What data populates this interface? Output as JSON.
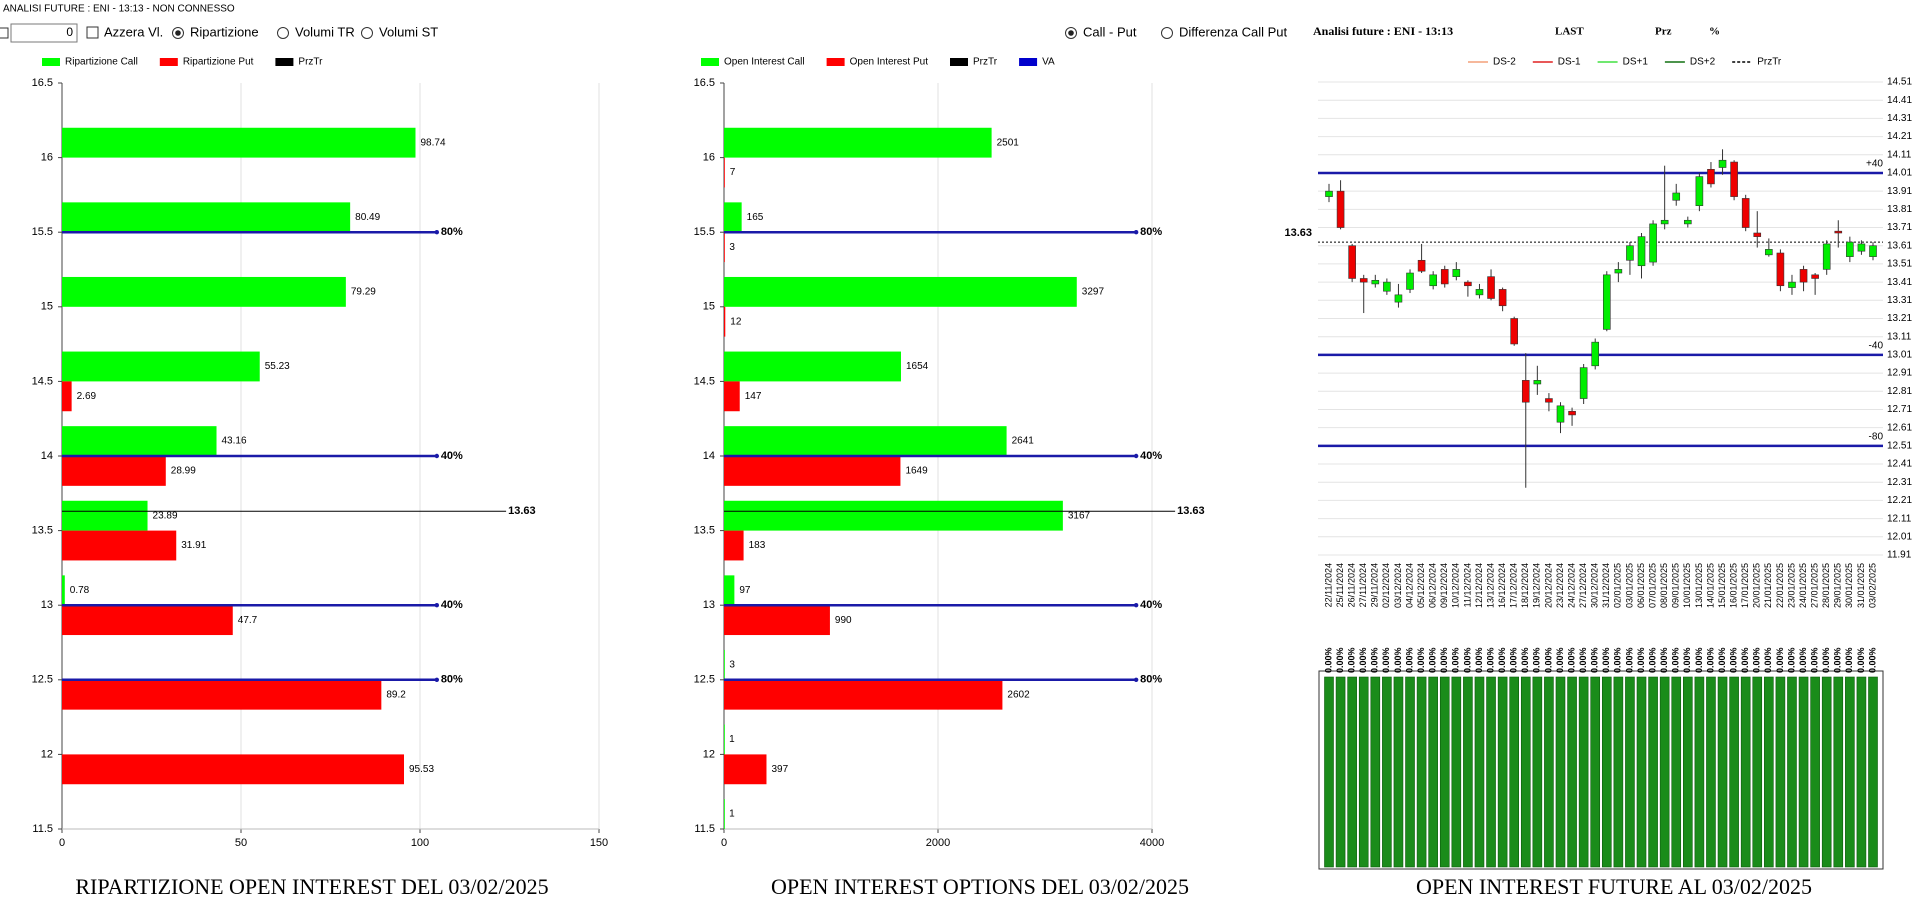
{
  "window": {
    "title": "ANALISI FUTURE : ENI - 13:13 - NON CONNESSO"
  },
  "controls": {
    "input": 0,
    "checkbox": "Azzera Vl.",
    "radios": [
      {
        "label": "Ripartizione",
        "checked": true
      },
      {
        "label": "Volumi TR",
        "checked": false
      },
      {
        "label": "Volumi ST",
        "checked": false
      }
    ],
    "view_radios": [
      {
        "label": "Call - Put",
        "checked": true
      },
      {
        "label": "Differenza Call Put",
        "checked": false
      }
    ]
  },
  "chart_data": [
    {
      "type": "hbar",
      "title": "RIPARTIZIONE OPEN INTEREST DEL 03/02/2025",
      "y": [
        16,
        15.5,
        15,
        14.5,
        14,
        13.5,
        13,
        12.5,
        12
      ],
      "ylim": [
        11.5,
        16.5
      ],
      "yticks": [
        16.5,
        16,
        15.5,
        15,
        14.5,
        14,
        13.5,
        13,
        12.5,
        12,
        11.5
      ],
      "xlim": [
        0,
        150
      ],
      "xticks": [
        0,
        50,
        100,
        150
      ],
      "grid": true,
      "series": [
        {
          "name": "Ripartizione Call",
          "color": "#00ff00",
          "values": [
            98.74,
            80.49,
            79.29,
            55.23,
            43.16,
            23.89,
            0.78,
            null,
            null
          ]
        },
        {
          "name": "Ripartizione Put",
          "color": "#ff0000",
          "values": [
            null,
            null,
            null,
            2.69,
            28.99,
            31.91,
            47.7,
            89.2,
            95.53
          ]
        }
      ],
      "legend_extra": [
        {
          "name": "PrzTr",
          "color": "#000000"
        }
      ],
      "ref_lines": [
        {
          "value": 15.5,
          "label": "80%"
        },
        {
          "value": 14,
          "label": "40%"
        },
        {
          "value": 13,
          "label": "40%"
        },
        {
          "value": 12.5,
          "label": "80%"
        }
      ],
      "price": 13.63
    },
    {
      "type": "hbar",
      "title": "OPEN INTEREST OPTIONS DEL 03/02/2025",
      "y": [
        16,
        15.5,
        15,
        14.5,
        14,
        13.5,
        13,
        12.5,
        12,
        11.5
      ],
      "ylim": [
        11.5,
        16.5
      ],
      "yticks": [
        16.5,
        16,
        15.5,
        15,
        14.5,
        14,
        13.5,
        13,
        12.5,
        12,
        11.5
      ],
      "xlim": [
        0,
        4000
      ],
      "xticks": [
        0,
        2000,
        4000
      ],
      "grid": true,
      "series": [
        {
          "name": "Open Interest Call",
          "color": "#00ff00",
          "values": [
            2501,
            165,
            3297,
            1654,
            2641,
            3167,
            97,
            3,
            1,
            1
          ]
        },
        {
          "name": "Open Interest Put",
          "color": "#ff0000",
          "values": [
            7,
            3,
            12,
            147,
            1649,
            183,
            990,
            2602,
            397,
            null
          ]
        }
      ],
      "legend_extra": [
        {
          "name": "PrzTr",
          "color": "#000000"
        },
        {
          "name": "VA",
          "color": "#0000cc"
        }
      ],
      "ref_lines": [
        {
          "value": 15.5,
          "label": "80%"
        },
        {
          "value": 14,
          "label": "40%"
        },
        {
          "value": 13,
          "label": "40%"
        },
        {
          "value": 12.5,
          "label": "80%"
        }
      ],
      "price": 13.63
    },
    {
      "type": "candlestick",
      "header": "Analisi future : ENI - 13:13",
      "columns": [
        "LAST",
        "Prz",
        "%"
      ],
      "legend": [
        {
          "name": "DS-2",
          "color": "#f4a07a"
        },
        {
          "name": "DS-1",
          "color": "#e02020"
        },
        {
          "name": "DS+1",
          "color": "#40e040"
        },
        {
          "name": "DS+2",
          "color": "#107010"
        },
        {
          "name": "PrzTr",
          "color": "#000000",
          "dash": true
        }
      ],
      "x": [
        "22/11/2024",
        "25/11/2024",
        "26/11/2024",
        "27/11/2024",
        "29/11/2024",
        "02/12/2024",
        "03/12/2024",
        "04/12/2024",
        "05/12/2024",
        "06/12/2024",
        "09/12/2024",
        "10/12/2024",
        "11/12/2024",
        "12/12/2024",
        "13/12/2024",
        "16/12/2024",
        "17/12/2024",
        "18/12/2024",
        "19/12/2024",
        "20/12/2024",
        "23/12/2024",
        "24/12/2024",
        "27/12/2024",
        "30/12/2024",
        "31/12/2024",
        "02/01/2025",
        "03/01/2025",
        "06/01/2025",
        "07/01/2025",
        "08/01/2025",
        "09/01/2025",
        "10/01/2025",
        "13/01/2025",
        "14/01/2025",
        "15/01/2025",
        "16/01/2025",
        "17/01/2025",
        "20/01/2025",
        "21/01/2025",
        "22/01/2025",
        "23/01/2025",
        "24/01/2025",
        "27/01/2025",
        "28/01/2025",
        "29/01/2025",
        "30/01/2025",
        "31/01/2025",
        "03/02/2025"
      ],
      "open": [
        13.88,
        13.91,
        13.61,
        13.43,
        13.4,
        13.36,
        13.3,
        13.37,
        13.53,
        13.39,
        13.48,
        13.44,
        13.41,
        13.34,
        13.44,
        13.37,
        13.21,
        12.87,
        12.85,
        12.77,
        12.64,
        12.7,
        12.77,
        12.95,
        13.15,
        13.46,
        13.53,
        13.5,
        13.52,
        13.73,
        13.86,
        13.73,
        13.83,
        14.03,
        14.04,
        14.07,
        13.87,
        13.68,
        13.56,
        13.57,
        13.38,
        13.48,
        13.45,
        13.48,
        13.69,
        13.55,
        13.58,
        13.55
      ],
      "high": [
        13.95,
        13.97,
        13.62,
        13.45,
        13.45,
        13.43,
        13.4,
        13.48,
        13.62,
        13.47,
        13.5,
        13.52,
        13.42,
        13.4,
        13.48,
        13.38,
        13.22,
        13.02,
        12.95,
        12.8,
        12.75,
        12.72,
        12.96,
        13.1,
        13.47,
        13.52,
        13.63,
        13.68,
        13.75,
        14.05,
        13.95,
        13.77,
        14.01,
        14.07,
        14.14,
        14.08,
        13.89,
        13.8,
        13.65,
        13.59,
        13.45,
        13.5,
        13.46,
        13.64,
        13.75,
        13.66,
        13.64,
        13.63
      ],
      "low": [
        13.85,
        13.7,
        13.41,
        13.24,
        13.38,
        13.34,
        13.27,
        13.35,
        13.46,
        13.37,
        13.38,
        13.42,
        13.33,
        13.32,
        13.31,
        13.25,
        13.06,
        12.28,
        12.79,
        12.7,
        12.58,
        12.62,
        12.74,
        12.93,
        13.14,
        13.41,
        13.45,
        13.43,
        13.5,
        13.7,
        13.83,
        13.71,
        13.8,
        13.93,
        14.0,
        13.86,
        13.69,
        13.6,
        13.55,
        13.36,
        13.34,
        13.36,
        13.34,
        13.45,
        13.6,
        13.52,
        13.56,
        13.53
      ],
      "close": [
        13.91,
        13.71,
        13.43,
        13.41,
        13.42,
        13.41,
        13.34,
        13.46,
        13.47,
        13.45,
        13.4,
        13.48,
        13.39,
        13.37,
        13.32,
        13.28,
        13.07,
        12.75,
        12.87,
        12.75,
        12.73,
        12.68,
        12.94,
        13.08,
        13.45,
        13.48,
        13.61,
        13.66,
        13.73,
        13.75,
        13.9,
        13.75,
        13.99,
        13.95,
        14.08,
        13.88,
        13.71,
        13.66,
        13.59,
        13.39,
        13.41,
        13.41,
        13.43,
        13.62,
        13.68,
        13.63,
        13.62,
        13.61
      ],
      "ylim": [
        11.91,
        14.51
      ],
      "yticks": [
        14.51,
        14.41,
        14.31,
        14.21,
        14.11,
        14.01,
        13.91,
        13.81,
        13.71,
        13.61,
        13.51,
        13.41,
        13.31,
        13.21,
        13.11,
        13.01,
        12.91,
        12.81,
        12.71,
        12.61,
        12.51,
        12.41,
        12.31,
        12.21,
        12.11,
        12.01,
        11.91
      ],
      "grid": true,
      "ref_lines": [
        {
          "value": 14.01,
          "label": "+40"
        },
        {
          "value": 13.01,
          "label": "-40"
        },
        {
          "value": 12.51,
          "label": "-80"
        }
      ],
      "price": 13.63
    },
    {
      "type": "bar",
      "title": "OPEN INTEREST FUTURE AL 03/02/2025",
      "color": "#1a8c1a",
      "labels": [
        "0.00%",
        "0.00%",
        "0.00%",
        "0.00%",
        "0.00%",
        "0.00%",
        "0.00%",
        "0.00%",
        "0.00%",
        "0.00%",
        "0.00%",
        "0.00%",
        "0.00%",
        "0.00%",
        "0.00%",
        "0.00%",
        "0.00%",
        "0.00%",
        "0.00%",
        "0.00%",
        "0.00%",
        "0.00%",
        "0.00%",
        "0.00%",
        "0.00%",
        "0.00%",
        "0.00%",
        "0.00%",
        "0.00%",
        "0.00%",
        "0.00%",
        "0.00%",
        "0.00%",
        "0.00%",
        "0.00%",
        "0.00%",
        "0.00%",
        "0.00%",
        "0.00%",
        "0.00%",
        "0.00%",
        "0.00%",
        "0.00%",
        "0.00%",
        "0.00%",
        "0.00%",
        "0.00%",
        "0.00%"
      ]
    }
  ]
}
